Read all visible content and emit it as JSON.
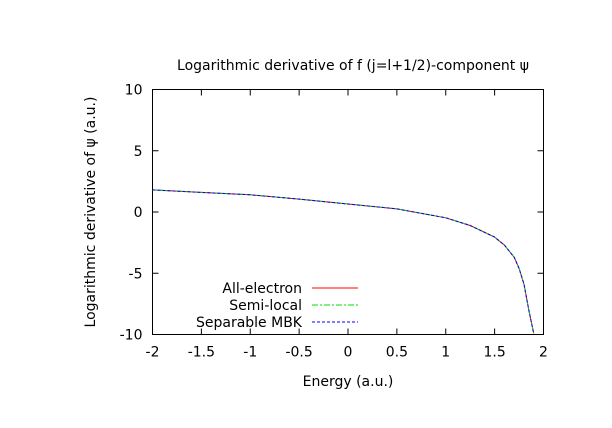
{
  "chart_data": {
    "type": "line",
    "title": "Logarithmic derivative of f (j=l+1/2)-component ψ",
    "xlabel": "Energy (a.u.)",
    "ylabel": "Logarithmic derivative of ψ (a.u.)",
    "xlim": [
      -2,
      2
    ],
    "ylim": [
      -10,
      10
    ],
    "xticks": [
      "-2",
      "-1.5",
      "-1",
      "-0.5",
      "0",
      "0.5",
      "1",
      "1.5",
      "2"
    ],
    "yticks": [
      "10",
      "5",
      "0",
      "-5",
      "-10"
    ],
    "grid": false,
    "legend_position": "bottom-left",
    "x": [
      -2,
      -1.5,
      -1,
      -0.5,
      0,
      0.5,
      1,
      1.25,
      1.5,
      1.6,
      1.7,
      1.75,
      1.8,
      1.85,
      1.9
    ],
    "series": [
      {
        "name": "All-electron",
        "color": "#ff0000",
        "dash": "solid",
        "values": [
          1.8,
          1.6,
          1.4,
          1.05,
          0.65,
          0.25,
          -0.47,
          -1.1,
          -2.05,
          -2.7,
          -3.7,
          -4.6,
          -5.9,
          -8.0,
          -9.9
        ]
      },
      {
        "name": "Semi-local",
        "color": "#00dd00",
        "dash": "dashdot",
        "values": [
          1.8,
          1.6,
          1.4,
          1.05,
          0.65,
          0.25,
          -0.47,
          -1.1,
          -2.05,
          -2.7,
          -3.7,
          -4.6,
          -5.9,
          -8.0,
          -9.9
        ]
      },
      {
        "name": "Separable MBK",
        "color": "#0000ff",
        "dash": "dashed",
        "values": [
          1.8,
          1.6,
          1.4,
          1.05,
          0.65,
          0.25,
          -0.47,
          -1.1,
          -2.05,
          -2.7,
          -3.7,
          -4.6,
          -5.9,
          -8.0,
          -9.9
        ]
      }
    ]
  }
}
